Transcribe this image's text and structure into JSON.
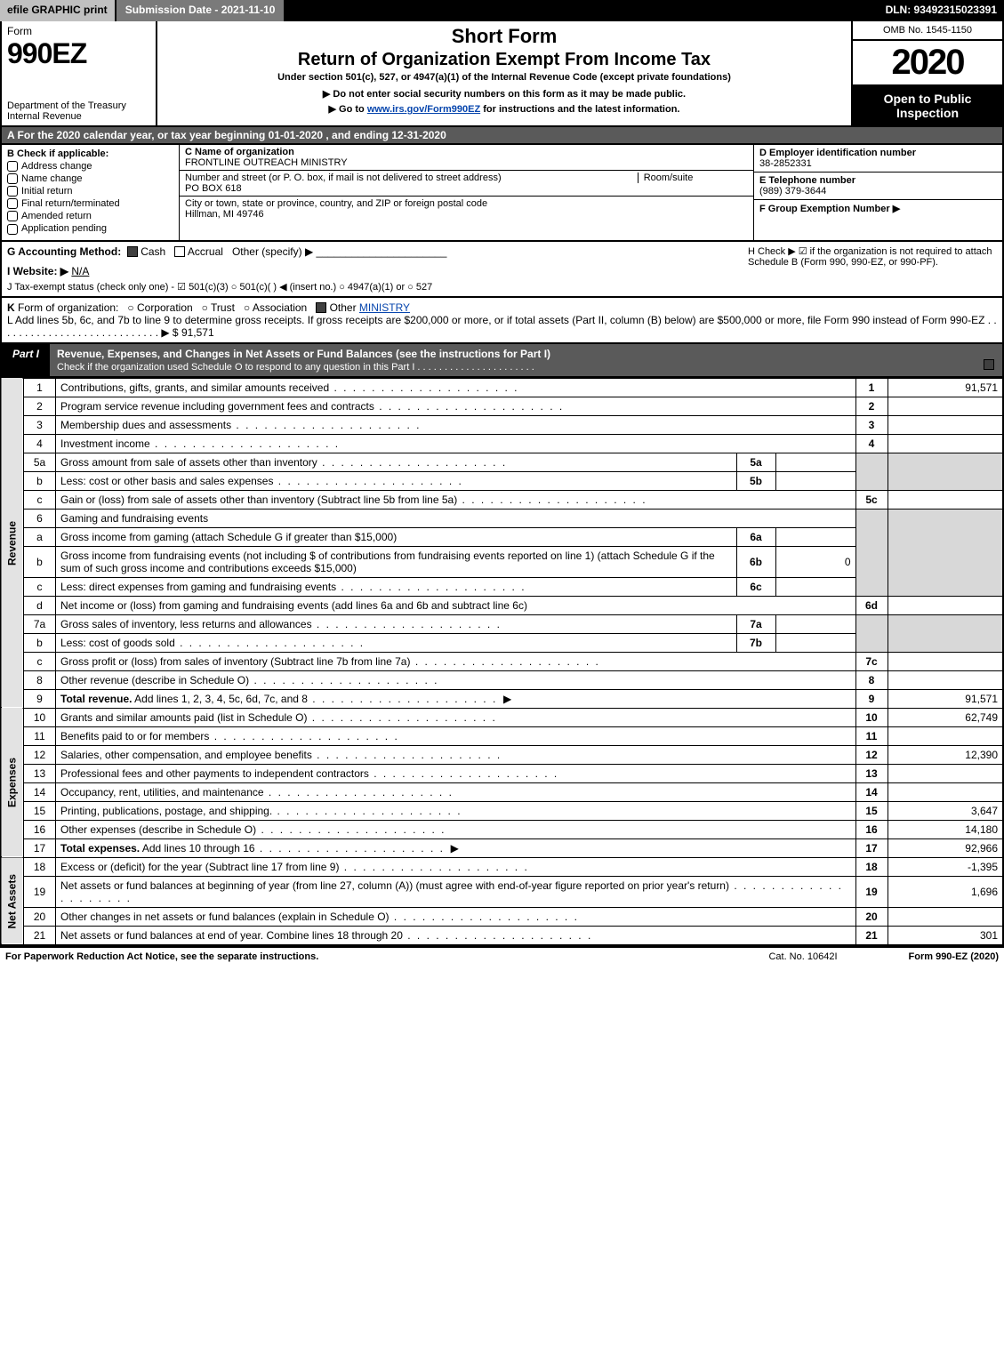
{
  "topbar": {
    "efile": "efile GRAPHIC print",
    "submission": "Submission Date - 2021-11-10",
    "dln": "DLN: 93492315023391"
  },
  "header": {
    "form_word": "Form",
    "form_no": "990EZ",
    "dept": "Department of the Treasury\nInternal Revenue",
    "short_form": "Short Form",
    "return_title": "Return of Organization Exempt From Income Tax",
    "under_section": "Under section 501(c), 527, or 4947(a)(1) of the Internal Revenue Code (except private foundations)",
    "no_ssn": "Do not enter social security numbers on this form as it may be made public.",
    "goto": "Go to www.irs.gov/Form990EZ for instructions and the latest information.",
    "goto_link_text": "www.irs.gov/Form990EZ",
    "omb": "OMB No. 1545-1150",
    "year": "2020",
    "open": "Open to Public Inspection"
  },
  "sectionA": "A  For the 2020 calendar year, or tax year beginning 01-01-2020 , and ending 12-31-2020",
  "colB": {
    "header": "B  Check if applicable:",
    "items": [
      "Address change",
      "Name change",
      "Initial return",
      "Final return/terminated",
      "Amended return",
      "Application pending"
    ]
  },
  "colC": {
    "name_label": "C Name of organization",
    "name": "FRONTLINE OUTREACH MINISTRY",
    "street_label": "Number and street (or P. O. box, if mail is not delivered to street address)",
    "room_label": "Room/suite",
    "street": "PO BOX 618",
    "city_label": "City or town, state or province, country, and ZIP or foreign postal code",
    "city": "Hillman, MI  49746"
  },
  "colDEF": {
    "d_label": "D Employer identification number",
    "ein": "38-2852331",
    "e_label": "E Telephone number",
    "phone": "(989) 379-3644",
    "f_label": "F Group Exemption Number  ▶"
  },
  "ghij": {
    "g_label": "G Accounting Method:",
    "g_cash": "Cash",
    "g_accrual": "Accrual",
    "g_other": "Other (specify) ▶",
    "h_text": "H  Check ▶ ☑ if the organization is not required to attach Schedule B (Form 990, 990-EZ, or 990-PF).",
    "i_label": "I Website: ▶",
    "i_val": "N/A",
    "j_label": "J Tax-exempt status (check only one) - ☑ 501(c)(3)  ○ 501(c)(  ) ◀ (insert no.)  ○ 4947(a)(1) or  ○ 527"
  },
  "kl": {
    "k": "K Form of organization:   ○ Corporation   ○ Trust   ○ Association   ☑ Other MINISTRY",
    "k_other_link": "MINISTRY",
    "l": "L Add lines 5b, 6c, and 7b to line 9 to determine gross receipts. If gross receipts are $200,000 or more, or if total assets (Part II, column (B) below) are $500,000 or more, file Form 990 instead of Form 990-EZ . . . . . . . . . . . . . . . . . . . . . . . . . . . . ▶ $ 91,571"
  },
  "part1": {
    "label": "Part I",
    "title": "Revenue, Expenses, and Changes in Net Assets or Fund Balances (see the instructions for Part I)",
    "sub": "Check if the organization used Schedule O to respond to any question in this Part I . . . . . . . . . . . . . . . . . . . . . .",
    "revenue_label": "Revenue",
    "expenses_label": "Expenses",
    "netassets_label": "Net Assets"
  },
  "lines": {
    "l1": {
      "n": "1",
      "desc": "Contributions, gifts, grants, and similar amounts received",
      "amt": "91,571"
    },
    "l2": {
      "n": "2",
      "desc": "Program service revenue including government fees and contracts",
      "amt": ""
    },
    "l3": {
      "n": "3",
      "desc": "Membership dues and assessments",
      "amt": ""
    },
    "l4": {
      "n": "4",
      "desc": "Investment income",
      "amt": ""
    },
    "l5a": {
      "n": "5a",
      "desc": "Gross amount from sale of assets other than inventory",
      "sub": "5a",
      "subval": ""
    },
    "l5b": {
      "n": "b",
      "desc": "Less: cost or other basis and sales expenses",
      "sub": "5b",
      "subval": ""
    },
    "l5c": {
      "n": "c",
      "desc": "Gain or (loss) from sale of assets other than inventory (Subtract line 5b from line 5a)",
      "rn": "5c",
      "amt": ""
    },
    "l6": {
      "n": "6",
      "desc": "Gaming and fundraising events"
    },
    "l6a": {
      "n": "a",
      "desc": "Gross income from gaming (attach Schedule G if greater than $15,000)",
      "sub": "6a",
      "subval": ""
    },
    "l6b": {
      "n": "b",
      "desc": "Gross income from fundraising events (not including $                    of contributions from fundraising events reported on line 1) (attach Schedule G if the sum of such gross income and contributions exceeds $15,000)",
      "sub": "6b",
      "subval": "0"
    },
    "l6c": {
      "n": "c",
      "desc": "Less: direct expenses from gaming and fundraising events",
      "sub": "6c",
      "subval": ""
    },
    "l6d": {
      "n": "d",
      "desc": "Net income or (loss) from gaming and fundraising events (add lines 6a and 6b and subtract line 6c)",
      "rn": "6d",
      "amt": ""
    },
    "l7a": {
      "n": "7a",
      "desc": "Gross sales of inventory, less returns and allowances",
      "sub": "7a",
      "subval": ""
    },
    "l7b": {
      "n": "b",
      "desc": "Less: cost of goods sold",
      "sub": "7b",
      "subval": ""
    },
    "l7c": {
      "n": "c",
      "desc": "Gross profit or (loss) from sales of inventory (Subtract line 7b from line 7a)",
      "rn": "7c",
      "amt": ""
    },
    "l8": {
      "n": "8",
      "desc": "Other revenue (describe in Schedule O)",
      "rn": "8",
      "amt": ""
    },
    "l9": {
      "n": "9",
      "desc": "Total revenue. Add lines 1, 2, 3, 4, 5c, 6d, 7c, and 8",
      "rn": "9",
      "amt": "91,571"
    },
    "l10": {
      "n": "10",
      "desc": "Grants and similar amounts paid (list in Schedule O)",
      "rn": "10",
      "amt": "62,749"
    },
    "l11": {
      "n": "11",
      "desc": "Benefits paid to or for members",
      "rn": "11",
      "amt": ""
    },
    "l12": {
      "n": "12",
      "desc": "Salaries, other compensation, and employee benefits",
      "rn": "12",
      "amt": "12,390"
    },
    "l13": {
      "n": "13",
      "desc": "Professional fees and other payments to independent contractors",
      "rn": "13",
      "amt": ""
    },
    "l14": {
      "n": "14",
      "desc": "Occupancy, rent, utilities, and maintenance",
      "rn": "14",
      "amt": ""
    },
    "l15": {
      "n": "15",
      "desc": "Printing, publications, postage, and shipping.",
      "rn": "15",
      "amt": "3,647"
    },
    "l16": {
      "n": "16",
      "desc": "Other expenses (describe in Schedule O)",
      "rn": "16",
      "amt": "14,180"
    },
    "l17": {
      "n": "17",
      "desc": "Total expenses. Add lines 10 through 16",
      "rn": "17",
      "amt": "92,966"
    },
    "l18": {
      "n": "18",
      "desc": "Excess or (deficit) for the year (Subtract line 17 from line 9)",
      "rn": "18",
      "amt": "-1,395"
    },
    "l19": {
      "n": "19",
      "desc": "Net assets or fund balances at beginning of year (from line 27, column (A)) (must agree with end-of-year figure reported on prior year's return)",
      "rn": "19",
      "amt": "1,696"
    },
    "l20": {
      "n": "20",
      "desc": "Other changes in net assets or fund balances (explain in Schedule O)",
      "rn": "20",
      "amt": ""
    },
    "l21": {
      "n": "21",
      "desc": "Net assets or fund balances at end of year. Combine lines 18 through 20",
      "rn": "21",
      "amt": "301"
    }
  },
  "footer": {
    "paperwork": "For Paperwork Reduction Act Notice, see the separate instructions.",
    "cat": "Cat. No. 10642I",
    "formno": "Form 990-EZ (2020)"
  },
  "colors": {
    "topbar_bg": "#000000",
    "topbar_btn_bg": "#c0c0c0",
    "topbar_sub_bg": "#7a7a7a",
    "section_bg": "#5a5a5a",
    "shade_bg": "#d8d8d8",
    "vert_bg": "#e3e3e3",
    "link": "#0645ad"
  }
}
